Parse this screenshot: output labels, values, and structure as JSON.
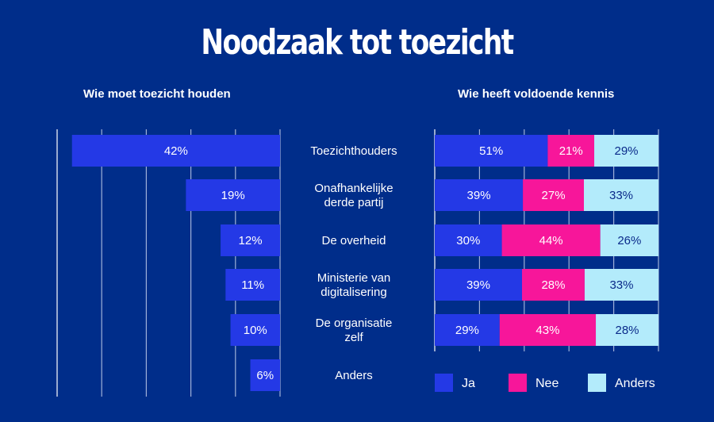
{
  "title": "Noodzaak tot toezicht",
  "colors": {
    "background": "#002d8a",
    "ja": "#2439e6",
    "nee": "#f7169a",
    "anders": "#b3ebfb",
    "grid": "#9fb0d8"
  },
  "chart_data": [
    {
      "type": "bar",
      "orientation": "horizontal",
      "title": "Wie moet toezicht houden",
      "categories": [
        "Toezichthouders",
        "Onafhankelijke derde partij",
        "De overheid",
        "Ministerie van digitalisering",
        "De organisatie zelf",
        "Anders"
      ],
      "category_lines": [
        [
          "Toezichthouders"
        ],
        [
          "Onafhankelijke",
          "derde partij"
        ],
        [
          "De overheid"
        ],
        [
          "Ministerie van",
          "digitalisering"
        ],
        [
          "De organisatie",
          "zelf"
        ],
        [
          "Anders"
        ]
      ],
      "values": [
        42,
        19,
        12,
        11,
        10,
        6
      ],
      "labels": [
        "42%",
        "19%",
        "12%",
        "11%",
        "10%",
        "6%"
      ],
      "xlim": [
        0,
        45
      ],
      "grid": true,
      "direction": "right-to-left"
    },
    {
      "type": "bar",
      "orientation": "horizontal",
      "stacked": true,
      "title": "Wie heeft voldoende kennis",
      "categories": [
        "Toezichthouders",
        "Onafhankelijke derde partij",
        "De overheid",
        "Ministerie van digitalisering",
        "De organisatie zelf"
      ],
      "series": [
        {
          "name": "Ja",
          "values": [
            51,
            39,
            30,
            39,
            29
          ]
        },
        {
          "name": "Nee",
          "values": [
            21,
            27,
            44,
            28,
            43
          ]
        },
        {
          "name": "Anders",
          "values": [
            29,
            33,
            26,
            33,
            28
          ]
        }
      ],
      "xlim": [
        0,
        100
      ],
      "grid": true,
      "legend": "bottom"
    }
  ]
}
